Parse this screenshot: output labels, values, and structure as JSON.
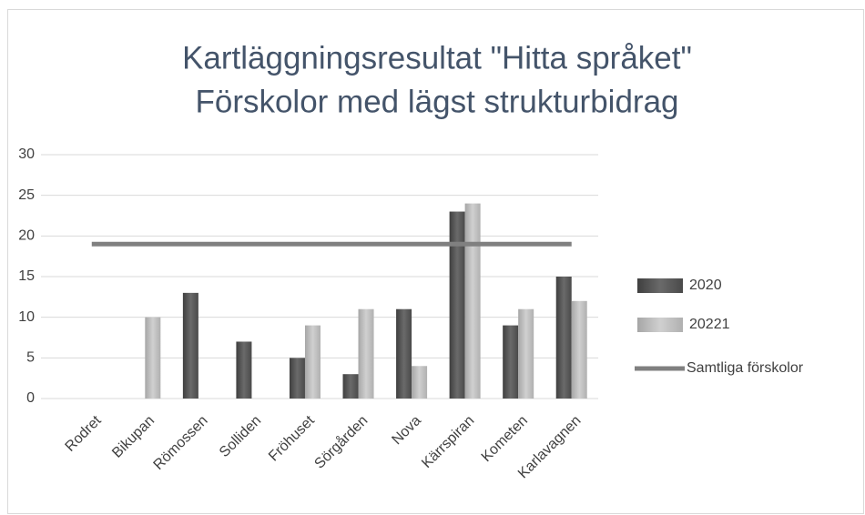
{
  "chart_data": {
    "type": "bar",
    "title": [
      "Kartläggningsresultat \"Hitta språket\"",
      "Förskolor med lägst strukturbidrag"
    ],
    "categories": [
      "Rodret",
      "Bikupan",
      "Römossen",
      "Solliden",
      "Fröhuset",
      "Sörgården",
      "Nova",
      "Kärrspiran",
      "Kometen",
      "Karlavagnen"
    ],
    "series": [
      {
        "name": "2020",
        "color": "#595959",
        "values": [
          null,
          null,
          13,
          7,
          5,
          3,
          11,
          23,
          9,
          15
        ]
      },
      {
        "name": "20221",
        "color": "#bfbfbf",
        "values": [
          null,
          10,
          null,
          null,
          9,
          11,
          4,
          24,
          11,
          12
        ]
      },
      {
        "name": "Samtliga förskolor",
        "type": "line",
        "color": "#808080",
        "values": [
          19,
          19,
          19,
          19,
          19,
          19,
          19,
          19,
          19,
          19
        ]
      }
    ],
    "ylim": [
      0,
      30
    ],
    "yticks": [
      0,
      5,
      10,
      15,
      20,
      25,
      30
    ],
    "grid": true,
    "legend": "right"
  }
}
